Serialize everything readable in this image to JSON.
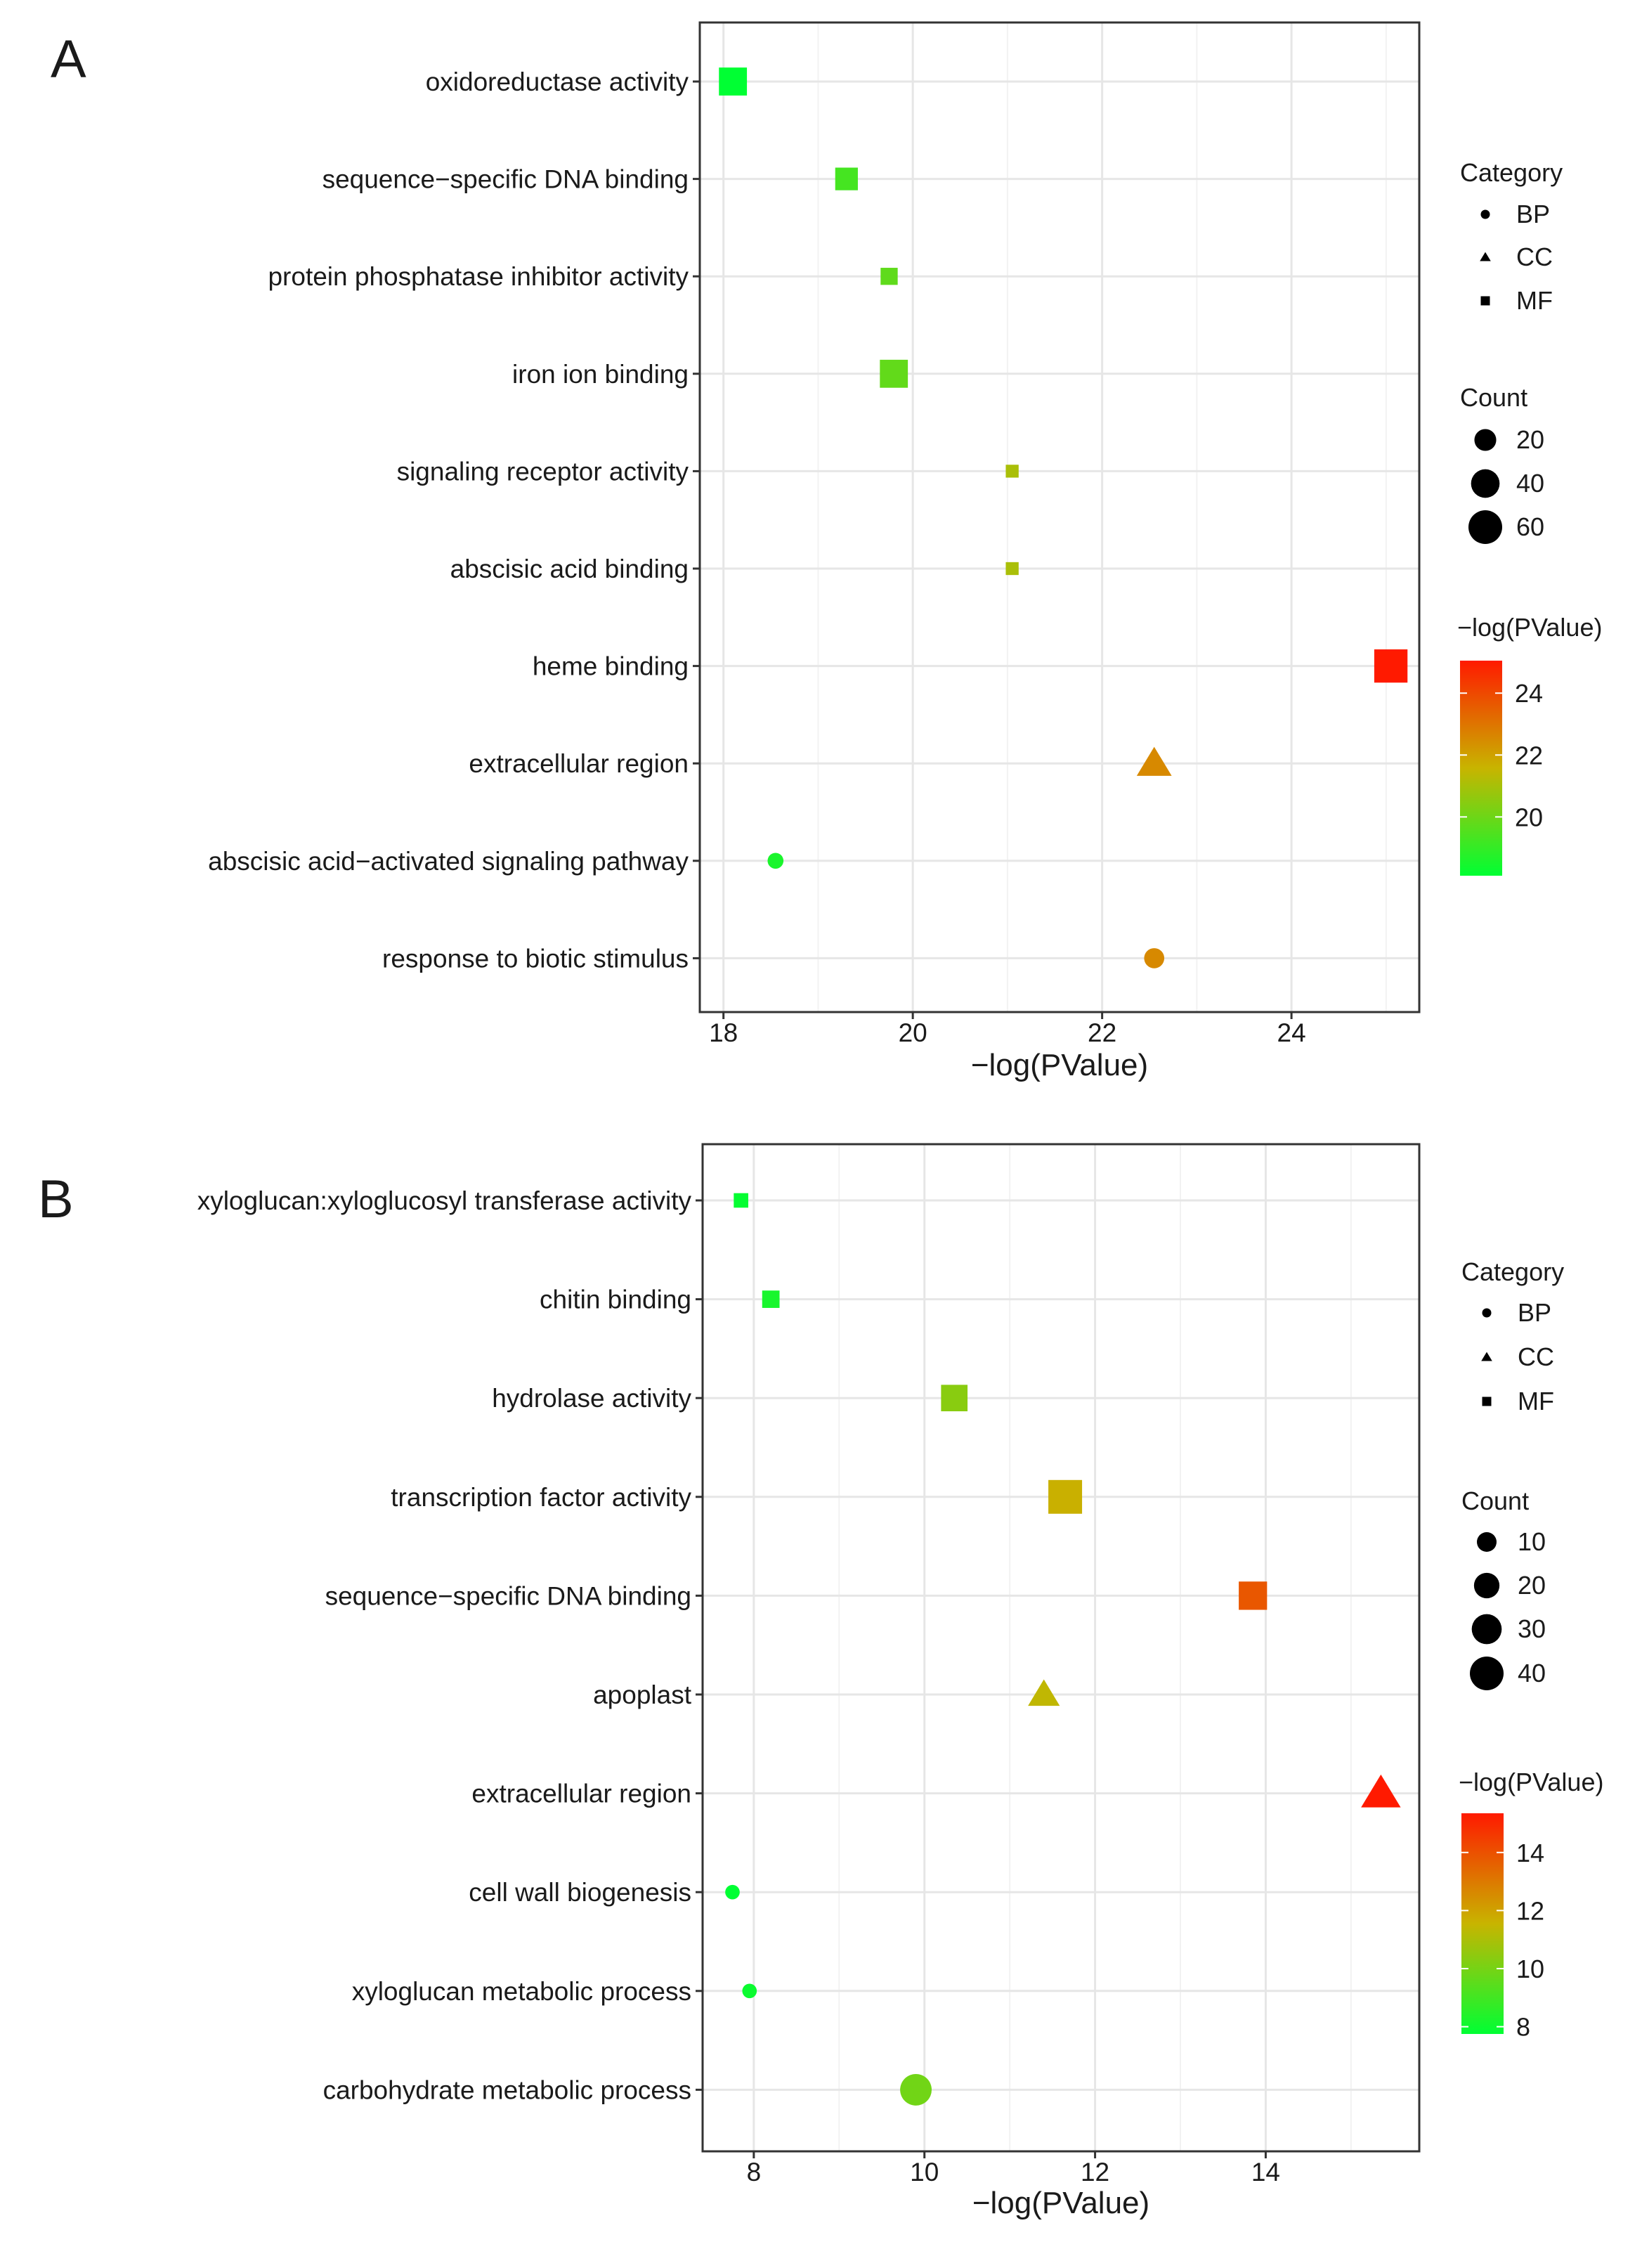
{
  "chart_data": [
    {
      "panel_label": "A",
      "type": "scatter",
      "xlabel": "−log(PValue)",
      "xlim": [
        17.75,
        25.35
      ],
      "xticks": [
        18,
        20,
        22,
        24
      ],
      "xtick_labels": [
        "18",
        "20",
        "22",
        "24"
      ],
      "categories": [
        "oxidoreductase activity",
        "sequence−specific DNA binding",
        "protein phosphatase inhibitor activity",
        "iron ion binding",
        "signaling receptor activity",
        "abscisic acid binding",
        "heme binding",
        "extracellular region",
        "abscisic acid−activated signaling pathway",
        "response to biotic stimulus"
      ],
      "points": [
        {
          "term": "oxidoreductase activity",
          "x": 18.1,
          "count": 38,
          "category": "MF"
        },
        {
          "term": "sequence−specific DNA binding",
          "x": 19.3,
          "count": 22,
          "category": "MF"
        },
        {
          "term": "protein phosphatase inhibitor activity",
          "x": 19.75,
          "count": 10,
          "category": "MF"
        },
        {
          "term": "iron ion binding",
          "x": 19.8,
          "count": 38,
          "category": "MF"
        },
        {
          "term": "signaling receptor activity",
          "x": 21.05,
          "count": 4,
          "category": "MF"
        },
        {
          "term": "abscisic acid binding",
          "x": 21.05,
          "count": 4,
          "category": "MF"
        },
        {
          "term": "heme binding",
          "x": 25.05,
          "count": 58,
          "category": "MF"
        },
        {
          "term": "extracellular region",
          "x": 22.55,
          "count": 42,
          "category": "CC"
        },
        {
          "term": "abscisic acid−activated signaling pathway",
          "x": 18.55,
          "count": 8,
          "category": "BP"
        },
        {
          "term": "response to biotic stimulus",
          "x": 22.55,
          "count": 16,
          "category": "BP"
        }
      ],
      "legend": {
        "category_title": "Category",
        "category_items": [
          "BP",
          "CC",
          "MF"
        ],
        "count_title": "Count",
        "count_items": [
          20,
          40,
          60
        ],
        "color_title": "−log(PValue)",
        "color_range": [
          18.1,
          25.05
        ],
        "color_ticks": [
          20,
          22,
          24
        ]
      }
    },
    {
      "panel_label": "B",
      "type": "scatter",
      "xlabel": "−log(PValue)",
      "xlim": [
        7.4,
        15.8
      ],
      "xticks": [
        8,
        10,
        12,
        14
      ],
      "xtick_labels": [
        "8",
        "10",
        "12",
        "14"
      ],
      "categories": [
        "xyloglucan:xyloglucosyl transferase activity",
        "chitin binding",
        "hydrolase activity",
        "transcription factor activity",
        "sequence−specific DNA binding",
        "apoplast",
        "extracellular region",
        "cell wall biogenesis",
        "xyloglucan metabolic process",
        "carbohydrate metabolic process"
      ],
      "points": [
        {
          "term": "xyloglucan:xyloglucosyl transferase activity",
          "x": 7.85,
          "count": 4,
          "category": "MF"
        },
        {
          "term": "chitin binding",
          "x": 8.2,
          "count": 7,
          "category": "MF"
        },
        {
          "term": "hydrolase activity",
          "x": 10.35,
          "count": 22,
          "category": "MF"
        },
        {
          "term": "transcription factor activity",
          "x": 11.65,
          "count": 40,
          "category": "MF"
        },
        {
          "term": "sequence−specific DNA binding",
          "x": 13.85,
          "count": 26,
          "category": "MF"
        },
        {
          "term": "apoplast",
          "x": 11.4,
          "count": 22,
          "category": "CC"
        },
        {
          "term": "extracellular region",
          "x": 15.35,
          "count": 38,
          "category": "CC"
        },
        {
          "term": "cell wall biogenesis",
          "x": 7.75,
          "count": 4,
          "category": "BP"
        },
        {
          "term": "xyloglucan metabolic process",
          "x": 7.95,
          "count": 4,
          "category": "BP"
        },
        {
          "term": "carbohydrate metabolic process",
          "x": 9.9,
          "count": 34,
          "category": "BP"
        }
      ],
      "legend": {
        "category_title": "Category",
        "category_items": [
          "BP",
          "CC",
          "MF"
        ],
        "count_title": "Count",
        "count_items": [
          10,
          20,
          30,
          40
        ],
        "color_title": "−log(PValue)",
        "color_range": [
          7.75,
          15.35
        ],
        "color_ticks": [
          8,
          10,
          12,
          14
        ]
      }
    }
  ]
}
